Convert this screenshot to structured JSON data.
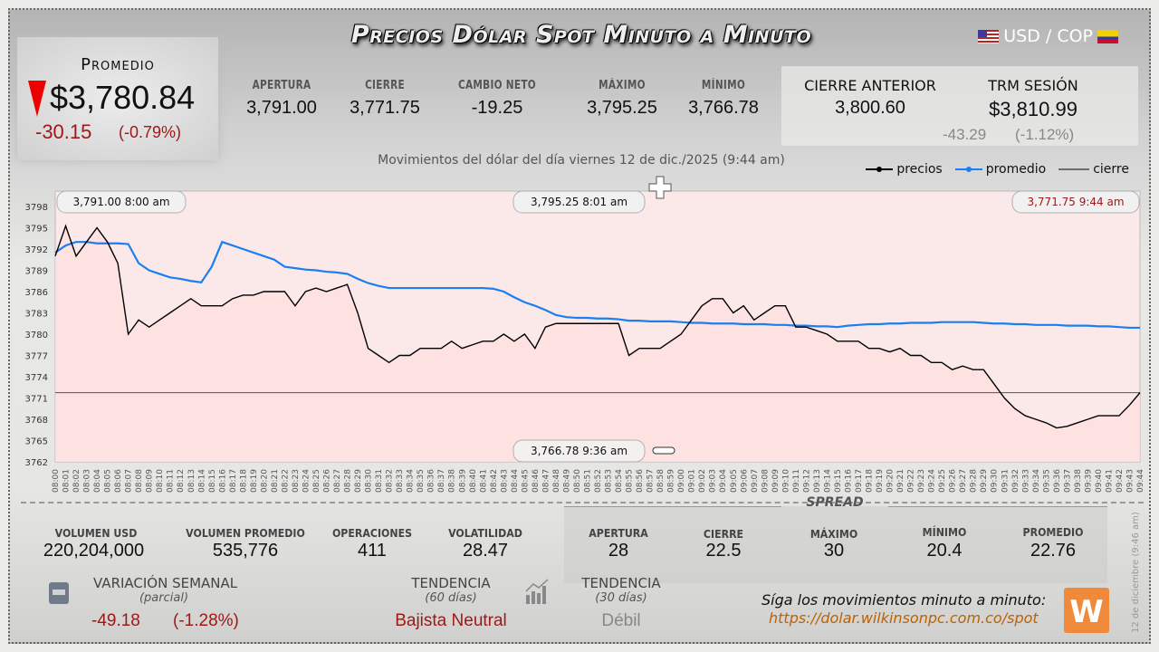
{
  "header": {
    "title": "Precios Dólar Spot Minuto a Minuto",
    "pair": "USD / COP",
    "flag_left": "us-flag-icon",
    "flag_right": "colombia-flag-icon"
  },
  "promedio": {
    "label": "Promedio",
    "value": "$3,780.84",
    "change": "-30.15",
    "change_pct": "(-0.79%)",
    "direction": "down",
    "arrow_color": "#e00000"
  },
  "stats": [
    {
      "label": "APERTURA",
      "value": "3,791.00"
    },
    {
      "label": "CIERRE",
      "value": "3,771.75",
      "color": "#a01818"
    },
    {
      "label": "CAMBIO NETO",
      "value": "-19.25"
    },
    {
      "label": "MÁXIMO",
      "value": "3,795.25"
    },
    {
      "label": "MÍNIMO",
      "value": "3,766.78"
    }
  ],
  "prev_close": {
    "label": "CIERRE ANTERIOR",
    "value": "3,800.60"
  },
  "trm": {
    "label": "TRM SESIÓN",
    "value": "$3,810.99",
    "change": "-43.29",
    "change_pct": "(-1.12%)"
  },
  "subtitle": "Movimientos del dólar del día viernes 12 de dic./2025 (9:44 am)",
  "chart_data": {
    "type": "line",
    "legend": [
      {
        "name": "precios",
        "color": "#000000"
      },
      {
        "name": "promedio",
        "color": "#1a7ff0"
      },
      {
        "name": "cierre",
        "color": "#000000"
      }
    ],
    "legend_placement": "top-right",
    "ylim": [
      3762,
      3798
    ],
    "yticks": [
      "3798",
      "3795",
      "3792",
      "3789",
      "3786",
      "3783",
      "3780",
      "3777",
      "3774",
      "3771",
      "3768",
      "3765",
      "3762"
    ],
    "x": [
      "08:00",
      "08:01",
      "08:02",
      "08:03",
      "08:04",
      "08:05",
      "08:06",
      "08:07",
      "08:08",
      "08:09",
      "08:10",
      "08:11",
      "08:12",
      "08:13",
      "08:14",
      "08:15",
      "08:16",
      "08:17",
      "08:18",
      "08:19",
      "08:20",
      "08:21",
      "08:22",
      "08:23",
      "08:24",
      "08:25",
      "08:26",
      "08:27",
      "08:28",
      "08:29",
      "08:30",
      "08:31",
      "08:32",
      "08:33",
      "08:34",
      "08:35",
      "08:36",
      "08:37",
      "08:38",
      "08:39",
      "08:40",
      "08:41",
      "08:42",
      "08:43",
      "08:44",
      "08:45",
      "08:46",
      "08:47",
      "08:48",
      "08:49",
      "08:50",
      "08:51",
      "08:52",
      "08:53",
      "08:54",
      "08:55",
      "08:56",
      "08:57",
      "08:58",
      "08:59",
      "09:00",
      "09:01",
      "09:02",
      "09:03",
      "09:04",
      "09:05",
      "09:06",
      "09:07",
      "09:08",
      "09:09",
      "09:10",
      "09:11",
      "09:12",
      "09:13",
      "09:14",
      "09:15",
      "09:16",
      "09:17",
      "09:18",
      "09:19",
      "09:20",
      "09:21",
      "09:22",
      "09:23",
      "09:24",
      "09:25",
      "09:26",
      "09:27",
      "09:28",
      "09:29",
      "09:30",
      "09:31",
      "09:32",
      "09:33",
      "09:34",
      "09:35",
      "09:36",
      "09:37",
      "09:38",
      "09:39",
      "09:40",
      "09:41",
      "09:42",
      "09:43",
      "09:44"
    ],
    "series": [
      {
        "name": "precios",
        "values": [
          3791,
          3795.25,
          3791,
          3793,
          3795,
          3793,
          3790,
          3780,
          3782,
          3781,
          3782,
          3783,
          3784,
          3785,
          3784,
          3784,
          3784,
          3785,
          3785.5,
          3785.5,
          3786,
          3786,
          3786,
          3784,
          3786,
          3786.5,
          3786,
          3786.5,
          3787,
          3783,
          3778,
          3777,
          3776,
          3777,
          3777,
          3778,
          3778,
          3778,
          3779,
          3778,
          3778.5,
          3779,
          3779,
          3780,
          3779,
          3780,
          3778,
          3781,
          3781.5,
          3781.5,
          3781.5,
          3781.5,
          3781.5,
          3781.5,
          3781.5,
          3777,
          3778,
          3778,
          3778,
          3779,
          3780,
          3782,
          3784,
          3785,
          3785,
          3783,
          3784,
          3782,
          3783,
          3784,
          3784,
          3781,
          3781,
          3780.5,
          3780,
          3779,
          3779,
          3779,
          3778,
          3778,
          3777.5,
          3778,
          3777,
          3777,
          3776,
          3776,
          3775,
          3775.5,
          3775,
          3775,
          3773,
          3771,
          3769.5,
          3768.5,
          3768,
          3767.5,
          3766.78,
          3767,
          3767.5,
          3768,
          3768.5,
          3768.5,
          3768.5,
          3770,
          3771.75
        ]
      },
      {
        "name": "promedio",
        "values": [
          3791.5,
          3792.5,
          3793,
          3793,
          3792.8,
          3792.8,
          3792.8,
          3792.7,
          3790,
          3789,
          3788.5,
          3788,
          3787.8,
          3787.5,
          3787.3,
          3789.5,
          3793,
          3792.5,
          3792,
          3791.5,
          3791,
          3790.5,
          3789.5,
          3789.3,
          3789.1,
          3789,
          3788.8,
          3788.7,
          3788.5,
          3787.8,
          3787.2,
          3786.8,
          3786.5,
          3786.5,
          3786.5,
          3786.5,
          3786.5,
          3786.5,
          3786.5,
          3786.5,
          3786.5,
          3786.5,
          3786.4,
          3786,
          3785.2,
          3784.5,
          3784,
          3783.4,
          3782.7,
          3782.4,
          3782.3,
          3782.3,
          3782.2,
          3782.2,
          3782.1,
          3781.9,
          3781.9,
          3781.8,
          3781.8,
          3781.8,
          3781.7,
          3781.6,
          3781.6,
          3781.5,
          3781.5,
          3781.5,
          3781.4,
          3781.4,
          3781.4,
          3781.3,
          3781.3,
          3781.2,
          3781.2,
          3781.1,
          3781.1,
          3781.0,
          3781.2,
          3781.3,
          3781.4,
          3781.4,
          3781.5,
          3781.5,
          3781.6,
          3781.6,
          3781.6,
          3781.7,
          3781.7,
          3781.7,
          3781.7,
          3781.6,
          3781.5,
          3781.5,
          3781.4,
          3781.4,
          3781.3,
          3781.3,
          3781.3,
          3781.2,
          3781.2,
          3781.2,
          3781.1,
          3781.1,
          3781.0,
          3780.9,
          3780.9
        ]
      }
    ],
    "cierre": 3771.75,
    "annotations": [
      {
        "text": "3,791.00   8:00 am",
        "at": "08:00"
      },
      {
        "text": "3,795.25   8:01 am",
        "at": "08:01"
      },
      {
        "text": "3,771.75   9:44 am",
        "at": "09:44",
        "color": "#a01818"
      },
      {
        "text": "3,766.78   9:36 am",
        "at": "09:36"
      }
    ]
  },
  "bottom": {
    "metrics": [
      {
        "label": "VOLUMEN USD",
        "value": "220,204,000"
      },
      {
        "label": "VOLUMEN PROMEDIO",
        "value": "535,776"
      },
      {
        "label": "OPERACIONES",
        "value": "411"
      },
      {
        "label": "VOLATILIDAD",
        "value": "28.47"
      }
    ],
    "spread_title": "SPREAD",
    "spread": [
      {
        "label": "APERTURA",
        "value": "28"
      },
      {
        "label": "CIERRE",
        "value": "22.5"
      },
      {
        "label": "MÁXIMO",
        "value": "30"
      },
      {
        "label": "MÍNIMO",
        "value": "20.4"
      },
      {
        "label": "PROMEDIO",
        "value": "22.76"
      }
    ],
    "weekly": {
      "label": "VARIACIÓN SEMANAL",
      "sub": "(parcial)",
      "value": "-49.18",
      "pct": "(-1.28%)",
      "icon": "calendar-icon"
    },
    "trend60": {
      "label": "TENDENCIA",
      "sub": "(60 días)",
      "value": "Bajista Neutral"
    },
    "trend30": {
      "label": "TENDENCIA",
      "sub": "(30 días)",
      "value": "Débil",
      "icon": "trend-chart-icon"
    },
    "follow": "Síga los movimientos minuto a minuto:",
    "url": "https://dolar.wilkinsonpc.com.co/spot",
    "logo": "W",
    "timestamp": "12 de diciembre (9:46 am)"
  }
}
